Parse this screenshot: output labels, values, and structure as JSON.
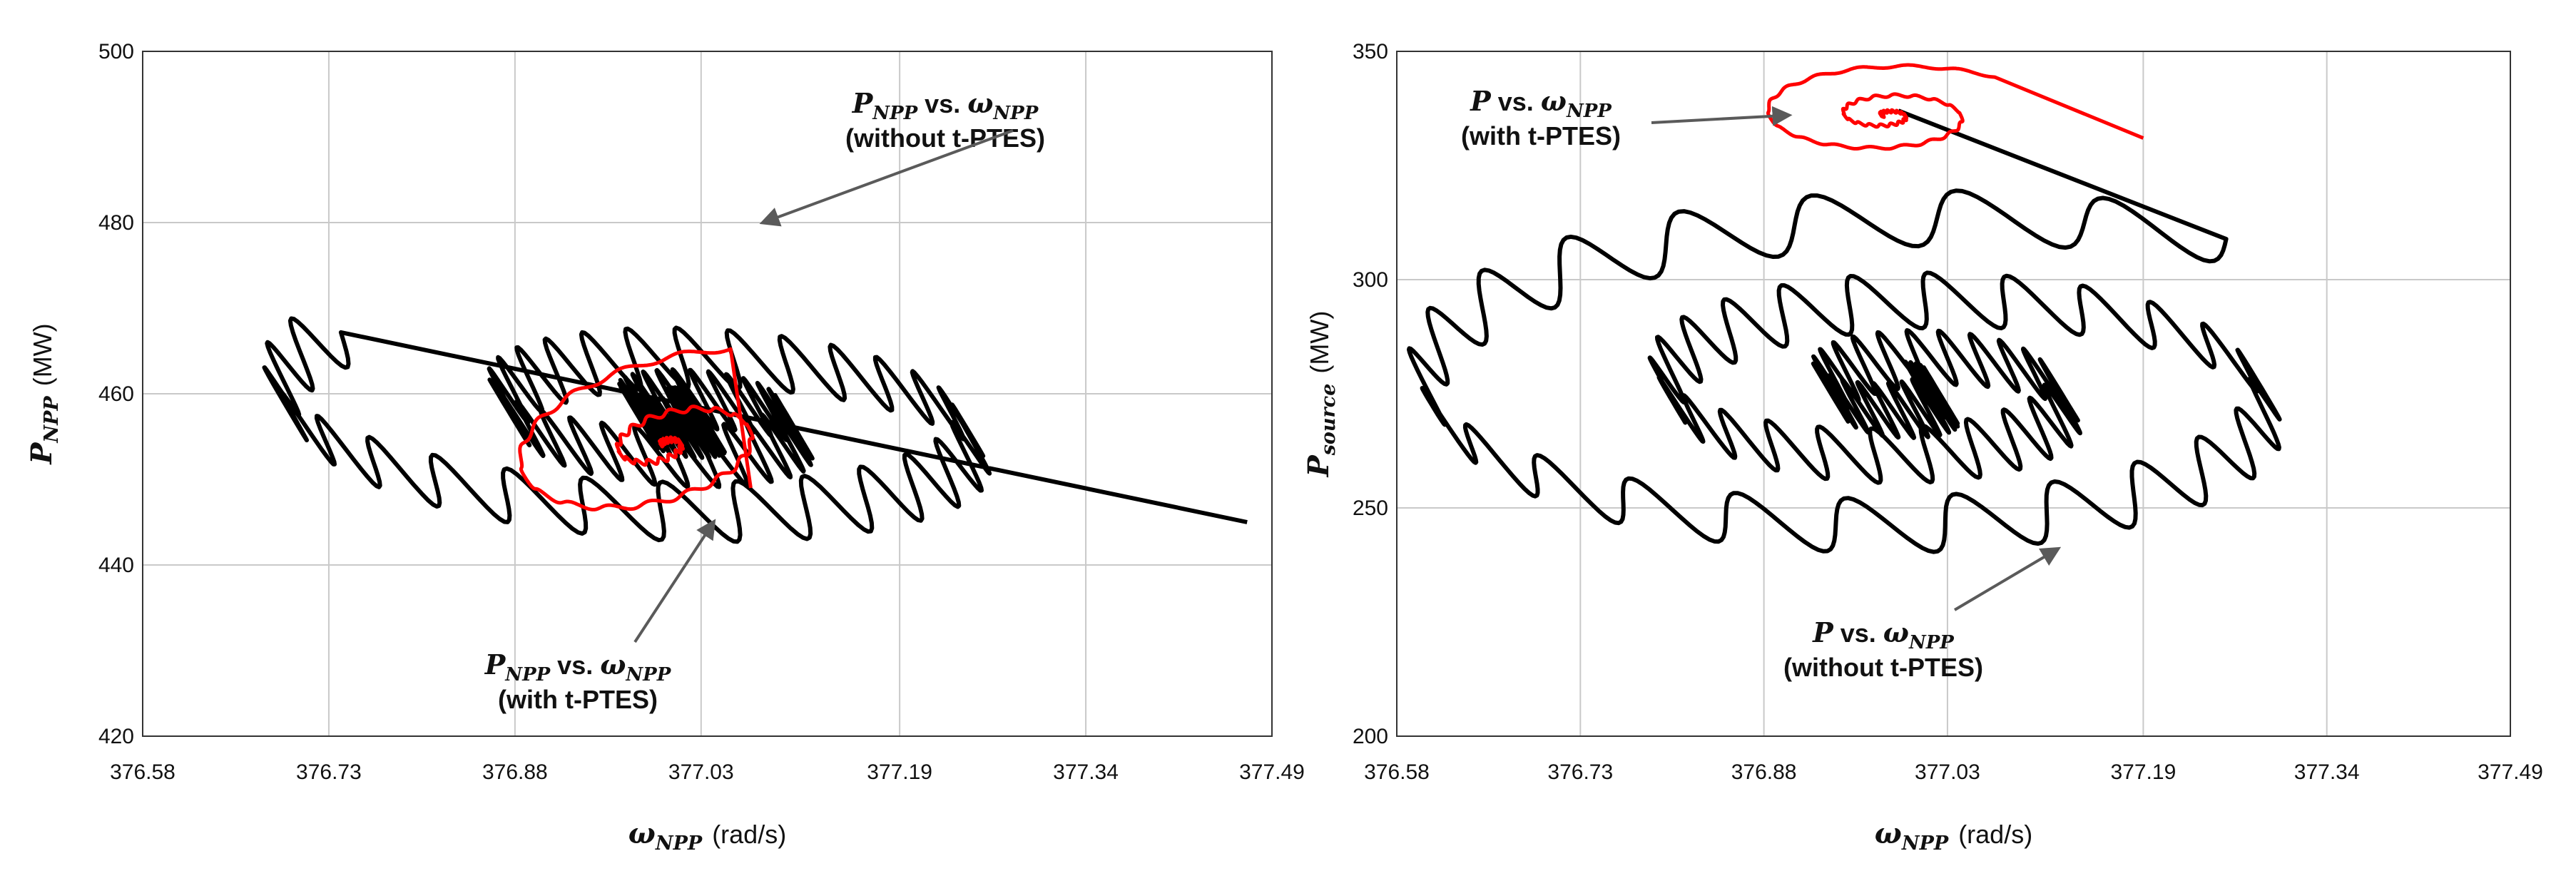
{
  "chart_data": [
    {
      "type": "scatter",
      "title": "",
      "xlabel": {
        "symbol": "ω",
        "sub": "NPP",
        "unit": "(rad/s)"
      },
      "ylabel": {
        "symbol": "P",
        "sub": "NPP",
        "unit": "(MW)"
      },
      "xlim": [
        376.58,
        377.49
      ],
      "ylim": [
        420,
        500
      ],
      "x_ticks": [
        "376.58",
        "376.73",
        "376.88",
        "377.03",
        "377.19",
        "377.34",
        "377.49"
      ],
      "y_ticks": [
        "420",
        "440",
        "460",
        "480",
        "500"
      ],
      "grid": true,
      "series": [
        {
          "color": "#000000",
          "style": "spiral with high-frequency oscillation",
          "center": [
            377.02,
            457
          ],
          "start": [
            377.47,
            445
          ],
          "shape": {
            "radius_x": 0.33,
            "radius_y": 13,
            "turns": 3,
            "decay": 0.84,
            "phase0": 2.5,
            "tilt": -0.5,
            "osc_amp": 3.5,
            "osc_period": 28
          }
        },
        {
          "color": "#ff0000",
          "style": "damped spiral",
          "center": [
            377.0,
            454
          ],
          "start": [
            377.07,
            449
          ],
          "shape": {
            "radius_x": 0.14,
            "radius_y": 10,
            "turns": 2.2,
            "decay": 0.6,
            "phase0": 1.2,
            "tilt": 1.0,
            "osc_amp": 0.3,
            "osc_period": 18
          }
        }
      ],
      "annotations": [
        {
          "symbol": "P",
          "sub": "NPP",
          "connector": "vs.",
          "symbol2": "ω",
          "sub2": "NPP",
          "note": "(without t-PTES)",
          "points_to": [
            377.08,
            480
          ]
        },
        {
          "symbol": "P",
          "sub": "NPP",
          "connector": "vs.",
          "symbol2": "ω",
          "sub2": "NPP",
          "note": "(with t-PTES)",
          "points_to": [
            377.04,
            445
          ]
        }
      ]
    },
    {
      "type": "scatter",
      "title": "",
      "xlabel": {
        "symbol": "ω",
        "sub": "NPP",
        "unit": "(rad/s)"
      },
      "ylabel": {
        "symbol": "P",
        "sub": "source",
        "unit": "(MW)"
      },
      "xlim": [
        376.58,
        377.49
      ],
      "ylim": [
        200,
        350
      ],
      "x_ticks": [
        "376.58",
        "376.73",
        "376.88",
        "377.03",
        "377.19",
        "377.34",
        "377.49"
      ],
      "y_ticks": [
        "200",
        "250",
        "300",
        "350"
      ],
      "grid": true,
      "series": [
        {
          "color": "#000000",
          "style": "spiral with high-frequency oscillation",
          "center": [
            377.0,
            275
          ],
          "start": [
            376.99,
            337
          ],
          "shape": {
            "radius_x": 0.45,
            "radius_y": 38,
            "turns": 3,
            "decay": 0.45,
            "phase0": 1.0,
            "tilt": 0.0,
            "osc_amp": 6,
            "osc_period": 24
          }
        },
        {
          "color": "#ff0000",
          "style": "damped spiral",
          "center": [
            376.98,
            336
          ],
          "start": [
            377.19,
            331
          ],
          "shape": {
            "radius_x": 0.12,
            "radius_y": 11,
            "turns": 2.5,
            "decay": 0.65,
            "phase0": 0.8,
            "tilt": 0.0,
            "osc_amp": 0.3,
            "osc_period": 18
          }
        }
      ],
      "annotations": [
        {
          "symbol": "P",
          "sub": "",
          "connector": "vs.",
          "symbol2": "ω",
          "sub2": "NPP",
          "note": "(with t-PTES)",
          "points_to": [
            376.9,
            336
          ]
        },
        {
          "symbol": "P",
          "sub": "",
          "connector": "vs.",
          "symbol2": "ω",
          "sub2": "NPP",
          "note": "(without t-PTES)",
          "points_to": [
            377.12,
            241
          ]
        }
      ]
    }
  ]
}
